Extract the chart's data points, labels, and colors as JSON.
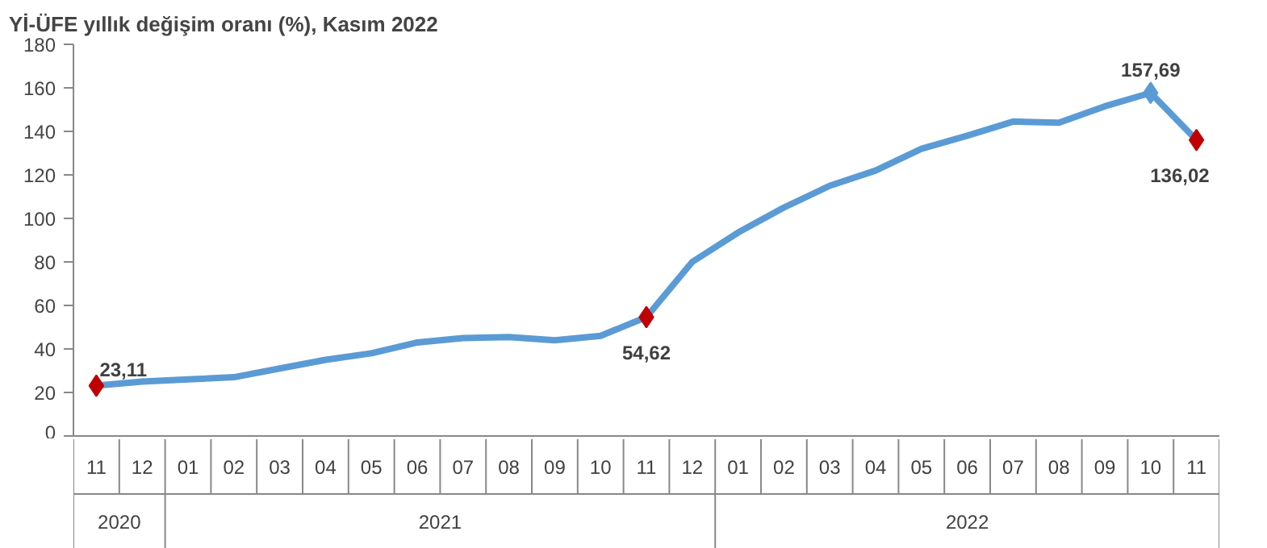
{
  "chart_data": {
    "type": "line",
    "title": "Yİ-ÜFE yıllık değişim oranı (%), Kasım 2022",
    "categories": [
      "11",
      "12",
      "01",
      "02",
      "03",
      "04",
      "05",
      "06",
      "07",
      "08",
      "09",
      "10",
      "11",
      "12",
      "01",
      "02",
      "03",
      "04",
      "05",
      "06",
      "07",
      "08",
      "09",
      "10",
      "11"
    ],
    "annotations": [
      "2020",
      "2021",
      "2022"
    ],
    "series": [
      {
        "color": "#5b9bd5",
        "marker": "none",
        "values": [
          23.11,
          25,
          26,
          27,
          31,
          35,
          38,
          43,
          45,
          45.5,
          44,
          46,
          54.62,
          80,
          93.5,
          105,
          115,
          122,
          132,
          138,
          144.5,
          144,
          151.5,
          157.69,
          136.02
        ]
      },
      {
        "type": "scatter",
        "color": "#c00000",
        "marker": "diamond",
        "values": [
          23.11,
          null,
          null,
          null,
          null,
          null,
          null,
          null,
          null,
          null,
          null,
          null,
          54.62,
          null,
          null,
          null,
          null,
          null,
          null,
          null,
          null,
          null,
          null,
          null,
          136.02
        ],
        "value_labels": [
          "23,11",
          null,
          null,
          null,
          null,
          null,
          null,
          null,
          null,
          null,
          null,
          null,
          "54,62",
          null,
          null,
          null,
          null,
          null,
          null,
          null,
          null,
          null,
          null,
          null,
          "136,02"
        ]
      },
      {
        "type": "scatter",
        "color": "#5b9bd5",
        "marker": "diamond",
        "values": [
          null,
          null,
          null,
          null,
          null,
          null,
          null,
          null,
          null,
          null,
          null,
          null,
          null,
          null,
          null,
          null,
          null,
          null,
          null,
          null,
          null,
          null,
          null,
          157.69,
          null
        ],
        "value_labels": [
          null,
          null,
          null,
          null,
          null,
          null,
          null,
          null,
          null,
          null,
          null,
          null,
          null,
          null,
          null,
          null,
          null,
          null,
          null,
          null,
          null,
          null,
          null,
          "157,69",
          null
        ]
      }
    ],
    "ylim": [
      0,
      180
    ],
    "yticks": [
      0,
      20,
      40,
      60,
      80,
      100,
      120,
      140,
      160,
      180
    ],
    "grid": false
  }
}
